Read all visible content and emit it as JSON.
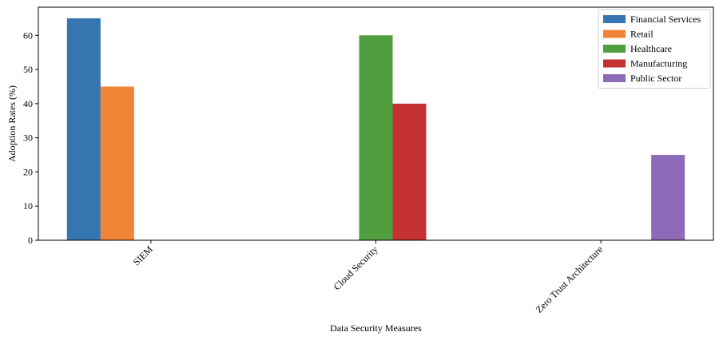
{
  "chart_data": {
    "type": "bar",
    "title": "",
    "xlabel": "Data Security Measures",
    "ylabel": "Adoption Rates (%)",
    "categories": [
      "SIEM",
      "Cloud Security",
      "Zero Trust Architecture"
    ],
    "ylim": [
      0,
      68.25
    ],
    "yticks": [
      0,
      10,
      20,
      30,
      40,
      50,
      60
    ],
    "grid": false,
    "legend_position": "top-right",
    "series": [
      {
        "name": "Financial Services",
        "color": "#3575b0",
        "values": [
          65,
          null,
          null
        ]
      },
      {
        "name": "Retail",
        "color": "#f08336",
        "values": [
          45,
          null,
          null
        ]
      },
      {
        "name": "Healthcare",
        "color": "#519e3e",
        "values": [
          null,
          60,
          null
        ]
      },
      {
        "name": "Manufacturing",
        "color": "#c53032",
        "values": [
          null,
          40,
          null
        ]
      },
      {
        "name": "Public Sector",
        "color": "#8e6bb8",
        "values": [
          null,
          null,
          25
        ]
      }
    ]
  }
}
